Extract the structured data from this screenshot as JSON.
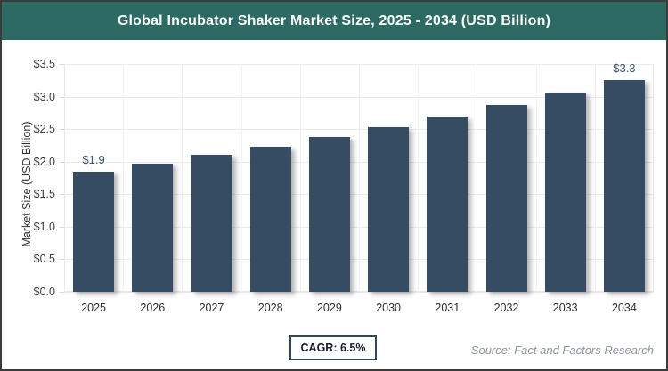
{
  "header": {
    "title": "Global Incubator Shaker Market Size, 2025 - 2034 (USD Billion)",
    "bg_color": "#2e6a64",
    "text_color": "#ffffff"
  },
  "chart_data": {
    "type": "bar",
    "title": "Global Incubator Shaker Market Size, 2025 - 2034 (USD Billion)",
    "categories": [
      "2025",
      "2026",
      "2027",
      "2028",
      "2029",
      "2030",
      "2031",
      "2032",
      "2033",
      "2034"
    ],
    "values": [
      1.85,
      1.97,
      2.1,
      2.23,
      2.38,
      2.53,
      2.7,
      2.87,
      3.06,
      3.26
    ],
    "point_labels": [
      "$1.9",
      "",
      "",
      "",
      "",
      "",
      "",
      "",
      "",
      "$3.3"
    ],
    "xlabel": "",
    "ylabel": "Market Size (USD Billion)",
    "y_ticks": [
      "$0.0",
      "$0.5",
      "$1.0",
      "$1.5",
      "$2.0",
      "$2.5",
      "$3.0",
      "$3.5"
    ],
    "ylim": [
      0,
      3.5
    ],
    "bar_color": "#364c63",
    "grid": true,
    "legend": false
  },
  "footer": {
    "cagr_label": "CAGR: 6.5%",
    "source": "Source: Fact and Factors Research"
  }
}
